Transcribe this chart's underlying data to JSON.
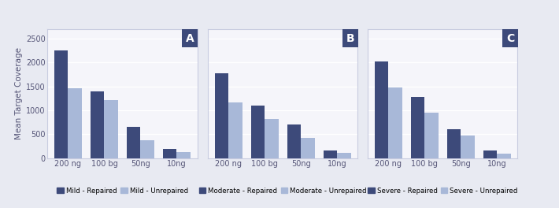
{
  "panels": [
    {
      "label": "A",
      "categories": [
        "200 ng",
        "100 bg",
        "50ng",
        "10ng"
      ],
      "repaired": [
        2250,
        1400,
        650,
        200
      ],
      "unrepaired": [
        1470,
        1220,
        380,
        120
      ],
      "legend_repaired": "Mild - Repaired",
      "legend_unrepaired": "Mild - Unrepaired"
    },
    {
      "label": "B",
      "categories": [
        "200 ng",
        "100 bg",
        "50ng",
        "10ng"
      ],
      "repaired": [
        1780,
        1100,
        700,
        165
      ],
      "unrepaired": [
        1160,
        820,
        430,
        110
      ],
      "legend_repaired": "Moderate - Repaired",
      "legend_unrepaired": "Moderate - Unrepaired"
    },
    {
      "label": "C",
      "categories": [
        "200 ng",
        "100 bg",
        "50ng",
        "10ng"
      ],
      "repaired": [
        2030,
        1280,
        610,
        155
      ],
      "unrepaired": [
        1480,
        950,
        470,
        100
      ],
      "legend_repaired": "Severe - Repaired",
      "legend_unrepaired": "Severe - Unrepaired"
    }
  ],
  "color_repaired": "#3d4a7a",
  "color_unrepaired": "#a8b8d8",
  "ylabel": "Mean Target Coverage",
  "ylim": [
    0,
    2700
  ],
  "yticks": [
    0,
    500,
    1000,
    1500,
    2000,
    2500
  ],
  "label_box_color": "#3d4a7a",
  "label_text_color": "#ffffff",
  "background_color": "#e8eaf2",
  "axes_background": "#f5f5fa",
  "grid_color": "#ffffff",
  "bar_width": 0.38,
  "tick_fontsize": 7,
  "ylabel_fontsize": 7.5,
  "legend_fontsize": 6.2
}
